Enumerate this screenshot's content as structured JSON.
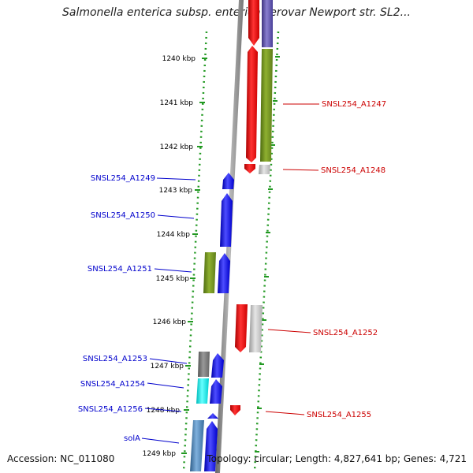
{
  "title": "Salmonella enterica subsp. enterica serovar Newport str. SL2...",
  "footer": {
    "accession": "Accession: NC_011080",
    "summary": "Topology: circular; Length: 4,827,641 bp; Genes: 4,721"
  },
  "colors": {
    "backbone": "#8a8a8a",
    "ruler": "#229922",
    "forward_strand": "#0000ee",
    "reverse_strand": "#ee0000",
    "olive": "#6b8e23",
    "grey": "#aaaaaa",
    "cyan": "#00eeee",
    "steel_blue": "#4682b4",
    "purple": "#5a4fa0"
  },
  "ruler_ticks": [
    {
      "kbp": 1240,
      "label": "1240 kbp"
    },
    {
      "kbp": 1241,
      "label": "1241 kbp"
    },
    {
      "kbp": 1242,
      "label": "1242 kbp"
    },
    {
      "kbp": 1243,
      "label": "1243 kbp"
    },
    {
      "kbp": 1244,
      "label": "1244 kbp"
    },
    {
      "kbp": 1245,
      "label": "1245 kbp"
    },
    {
      "kbp": 1246,
      "label": "1246 kbp"
    },
    {
      "kbp": 1247,
      "label": "1247 kbp"
    },
    {
      "kbp": 1248,
      "label": "1248 kbp"
    },
    {
      "kbp": 1249,
      "label": "1249 kbp"
    }
  ],
  "gene_labels": [
    {
      "name": "SNSL254_A1247",
      "side": "right",
      "color": "#cc0000"
    },
    {
      "name": "SNSL254_A1248",
      "side": "right",
      "color": "#cc0000"
    },
    {
      "name": "SNSL254_A1249",
      "side": "left",
      "color": "#0000cc"
    },
    {
      "name": "SNSL254_A1250",
      "side": "left",
      "color": "#0000cc"
    },
    {
      "name": "SNSL254_A1251",
      "side": "left",
      "color": "#0000cc"
    },
    {
      "name": "SNSL254_A1252",
      "side": "right",
      "color": "#cc0000"
    },
    {
      "name": "SNSL254_A1253",
      "side": "left",
      "color": "#0000cc"
    },
    {
      "name": "SNSL254_A1254",
      "side": "left",
      "color": "#0000cc"
    },
    {
      "name": "SNSL254_A1256",
      "side": "left",
      "color": "#0000cc"
    },
    {
      "name": "SNSL254_A1255",
      "side": "right",
      "color": "#cc0000"
    },
    {
      "name": "solA",
      "side": "left",
      "color": "#0000cc"
    }
  ]
}
